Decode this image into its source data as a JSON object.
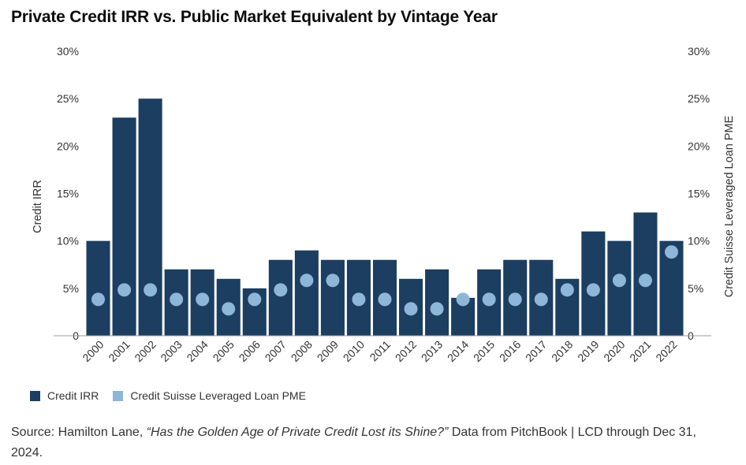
{
  "title": "Private Credit IRR vs. Public Market Equivalent by Vintage Year",
  "chart_data": {
    "type": "bar",
    "categories": [
      "2000",
      "2001",
      "2002",
      "2003",
      "2004",
      "2005",
      "2006",
      "2007",
      "2008",
      "2009",
      "2010",
      "2011",
      "2012",
      "2013",
      "2014",
      "2015",
      "2016",
      "2017",
      "2018",
      "2019",
      "2020",
      "2021",
      "2022"
    ],
    "series": [
      {
        "name": "Credit IRR",
        "type": "bar",
        "color": "#1b3e61",
        "values": [
          10,
          23,
          25,
          7,
          7,
          6,
          5,
          8,
          9,
          8,
          8,
          8,
          6,
          7,
          4,
          7,
          8,
          8,
          6,
          11,
          10,
          13,
          10
        ]
      },
      {
        "name": "Credit Suisse Leveraged Loan PME",
        "type": "scatter",
        "color": "#8db6d8",
        "values": [
          4,
          5,
          5,
          4,
          4,
          3,
          4,
          5,
          6,
          6,
          4,
          4,
          3,
          3,
          4,
          4,
          4,
          4,
          5,
          5,
          6,
          6,
          9
        ]
      }
    ],
    "ylabel": "Credit IRR",
    "y2label": "Credit Suisse Leveraged Loan PME",
    "ylim": [
      0,
      30
    ],
    "yticks": [
      "0",
      "5%",
      "10%",
      "15%",
      "20%",
      "25%",
      "30%"
    ],
    "grid": false,
    "legend_position": "bottom-left"
  },
  "legend": {
    "items": [
      {
        "label": "Credit IRR",
        "color": "#1b3e61"
      },
      {
        "label": "Credit Suisse Leveraged Loan PME",
        "color": "#8db6d8"
      }
    ]
  },
  "source": {
    "prefix": "Source: Hamilton Lane, ",
    "italic": "“Has the Golden Age of Private Credit Lost its Shine?”",
    "suffix": " Data from PitchBook | LCD through Dec 31, 2024."
  }
}
